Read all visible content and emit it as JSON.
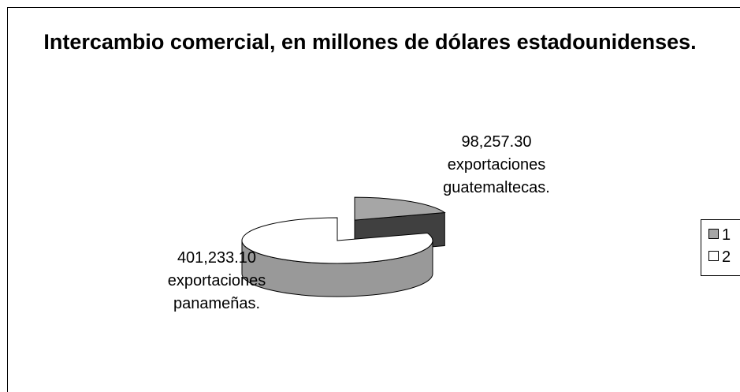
{
  "chart_data": {
    "type": "pie",
    "title": "Intercambio comercial, en millones de dólares estadounidenses.",
    "three_d": true,
    "legend_position": "right",
    "slices": [
      {
        "legend": "1",
        "value": 98257.3,
        "value_text": "98,257.30",
        "label_line1": "exportaciones",
        "label_line2": "guatemaltecas.",
        "top_color": "#a6a6a6",
        "side_color": "#404040",
        "exploded": true
      },
      {
        "legend": "2",
        "value": 401233.1,
        "value_text": "401,233.10",
        "label_line1": "exportaciones",
        "label_line2": "panameñas.",
        "top_color": "#ffffff",
        "side_color": "#999999",
        "exploded": false
      }
    ]
  }
}
